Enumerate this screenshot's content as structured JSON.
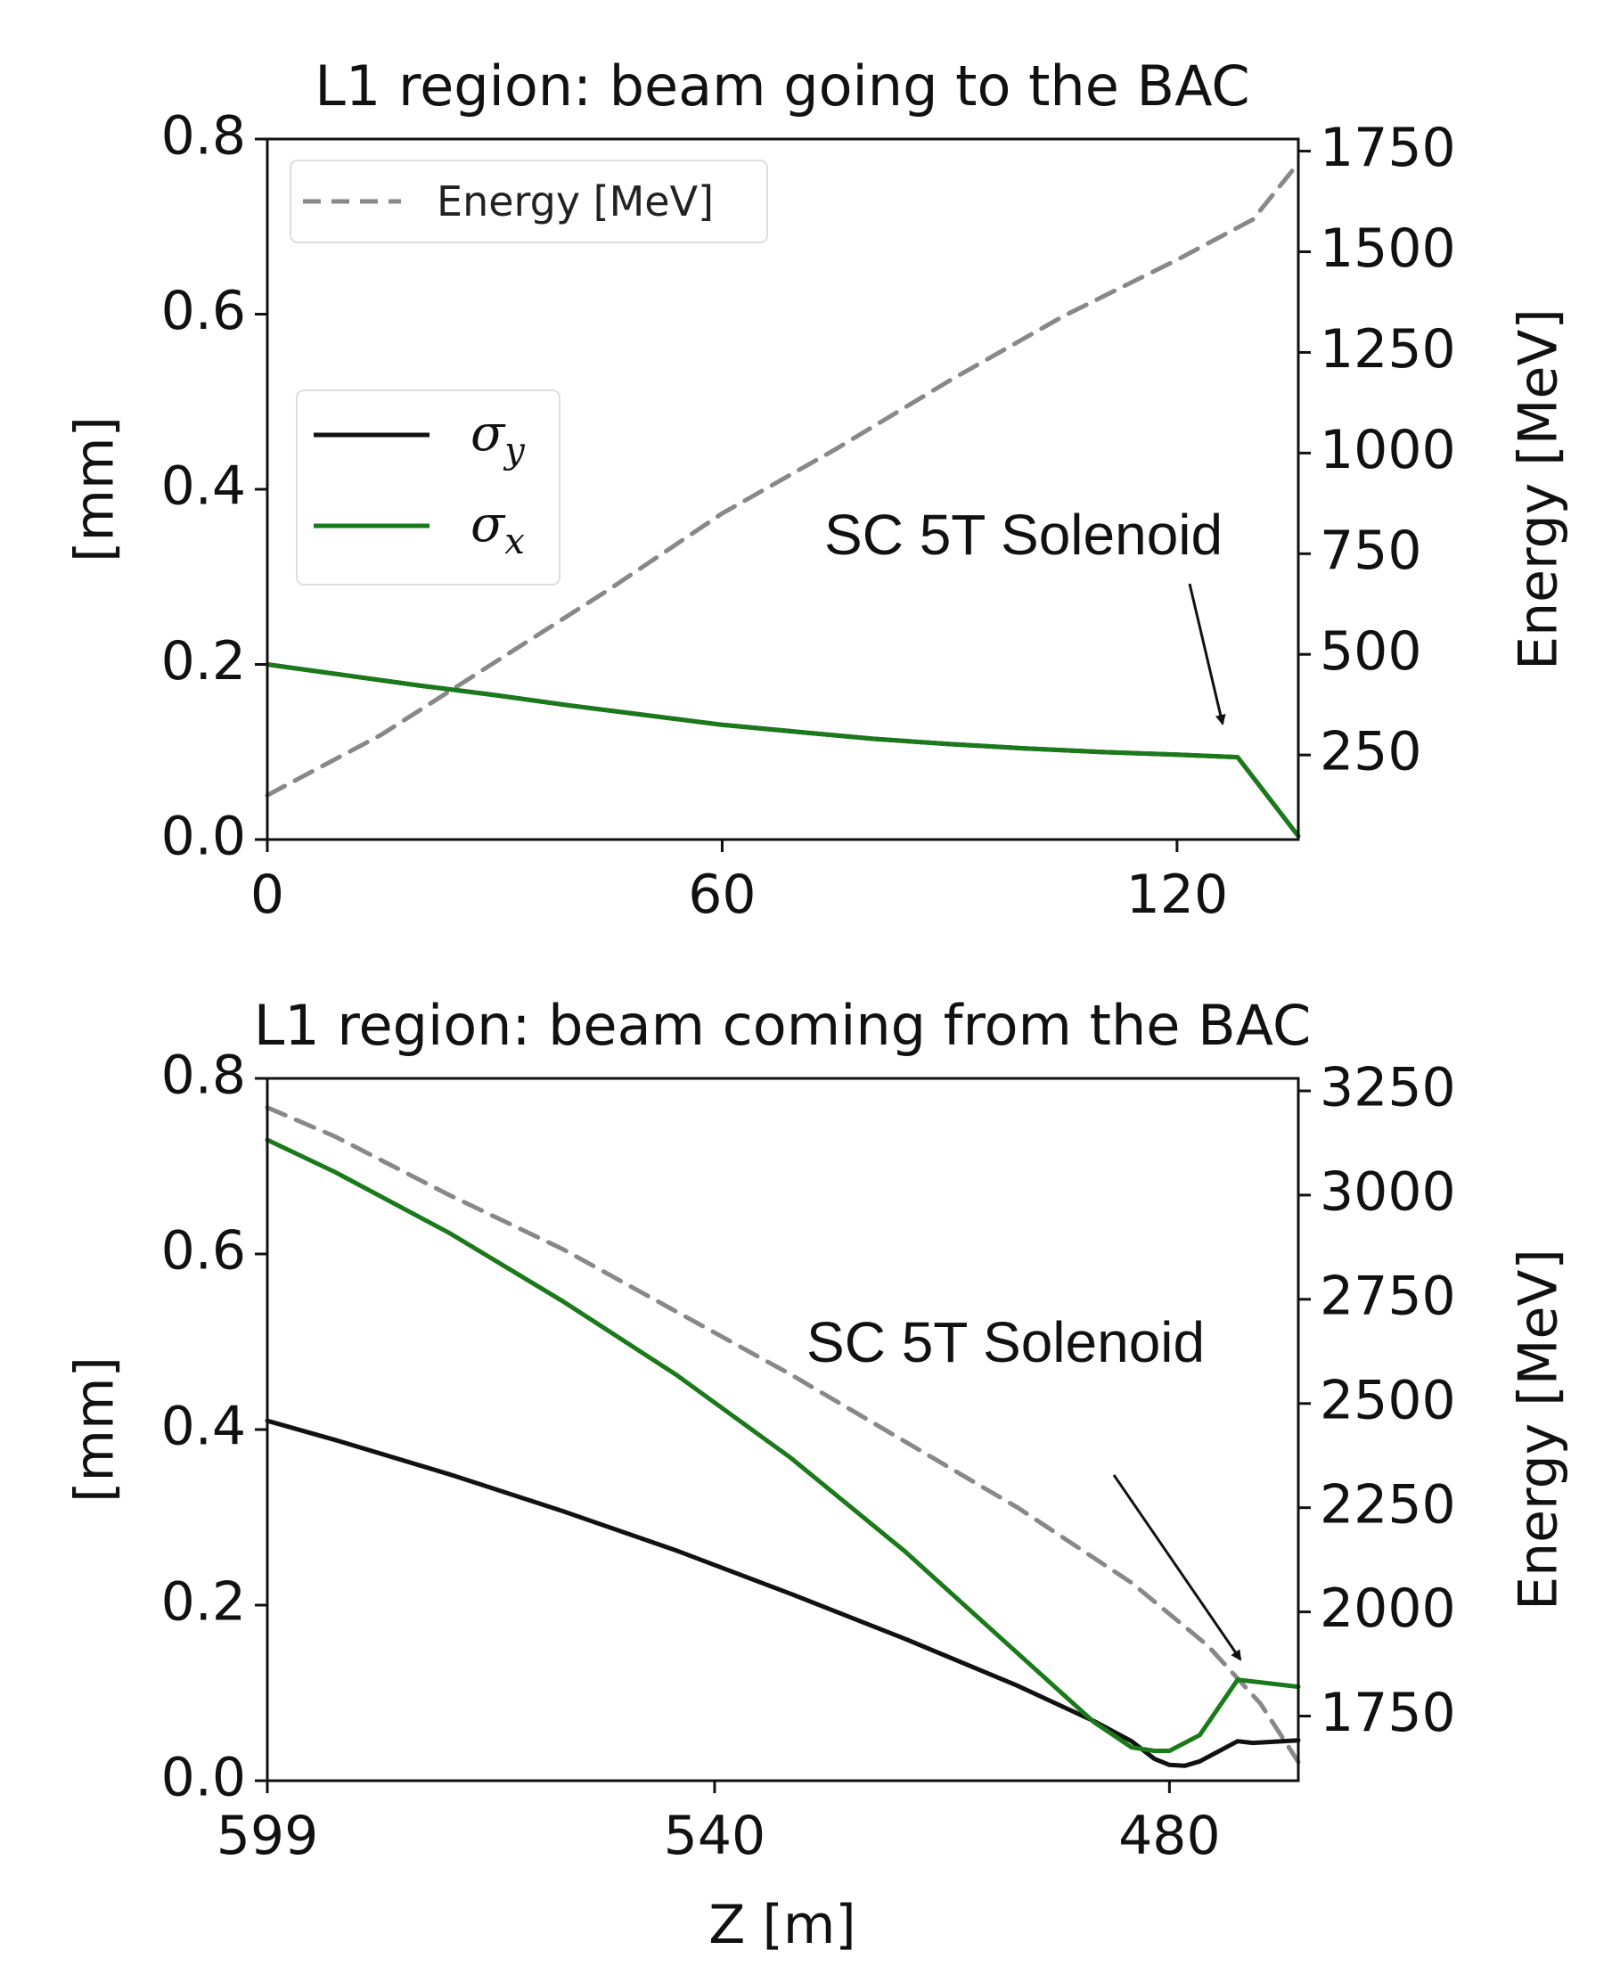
{
  "chart_data": [
    {
      "type": "line",
      "title": "L1 region: beam going to the BAC",
      "xlabel": "",
      "ylabel": "[mm]",
      "y2label": "Energy [MeV]",
      "xlim": [
        0,
        136
      ],
      "ylim": [
        0,
        0.8
      ],
      "y2lim": [
        40,
        1780
      ],
      "xticks": [
        0,
        60,
        120
      ],
      "yticks": [
        "0.0",
        "0.2",
        "0.4",
        "0.6",
        "0.8"
      ],
      "y2ticks": [
        "250",
        "500",
        "750",
        "1000",
        "1250",
        "1500",
        "1750"
      ],
      "legend_energy": "Energy [MeV]",
      "legend_sigma_y": "σy",
      "legend_sigma_x": "σx",
      "annotation": "SC 5T Solenoid",
      "series": [
        {
          "name": "Energy [MeV]",
          "axis": "right",
          "color": "#888888",
          "dash": true,
          "x": [
            0,
            15,
            30,
            45,
            60,
            75,
            90,
            105,
            120,
            130,
            136
          ],
          "y": [
            150,
            300,
            480,
            660,
            850,
            1010,
            1180,
            1340,
            1480,
            1580,
            1720
          ]
        },
        {
          "name": "σy",
          "axis": "left",
          "color": "#111111",
          "x": [
            0,
            10,
            20,
            30,
            40,
            50,
            60,
            70,
            80,
            90,
            100,
            110,
            120,
            128,
            136
          ],
          "y": [
            0.2,
            0.188,
            0.176,
            0.165,
            0.153,
            0.142,
            0.131,
            0.123,
            0.115,
            0.109,
            0.104,
            0.1,
            0.097,
            0.094,
            0.004
          ]
        },
        {
          "name": "σx",
          "axis": "left",
          "color": "#1a7a1a",
          "x": [
            0,
            10,
            20,
            30,
            40,
            50,
            60,
            70,
            80,
            90,
            100,
            110,
            120,
            128,
            136
          ],
          "y": [
            0.2,
            0.188,
            0.176,
            0.165,
            0.153,
            0.142,
            0.131,
            0.123,
            0.115,
            0.109,
            0.104,
            0.1,
            0.097,
            0.094,
            0.004
          ]
        }
      ]
    },
    {
      "type": "line",
      "title": "L1 region: beam coming from the BAC",
      "xlabel": "Z [m]",
      "ylabel": "[mm]",
      "y2label": "Energy [MeV]",
      "xlim": [
        599,
        463
      ],
      "ylim": [
        0,
        0.8
      ],
      "y2lim": [
        1595,
        3280
      ],
      "xticks": [
        599,
        540,
        480
      ],
      "yticks": [
        "0.0",
        "0.2",
        "0.4",
        "0.6",
        "0.8"
      ],
      "y2ticks": [
        "1750",
        "2000",
        "2250",
        "2500",
        "2750",
        "3000",
        "3250"
      ],
      "annotation": "SC 5T Solenoid",
      "series": [
        {
          "name": "Energy [MeV]",
          "axis": "right",
          "color": "#888888",
          "dash": true,
          "x": [
            599,
            590,
            575,
            560,
            545,
            530,
            515,
            500,
            485,
            475,
            468,
            463
          ],
          "y": [
            3210,
            3140,
            3000,
            2870,
            2720,
            2570,
            2410,
            2250,
            2070,
            1920,
            1780,
            1640
          ]
        },
        {
          "name": "σy",
          "axis": "left",
          "color": "#111111",
          "x": [
            599,
            590,
            575,
            560,
            545,
            530,
            515,
            500,
            490,
            485,
            482,
            480,
            478,
            476,
            471,
            469,
            463
          ],
          "y": [
            0.41,
            0.388,
            0.349,
            0.307,
            0.262,
            0.213,
            0.162,
            0.108,
            0.068,
            0.045,
            0.025,
            0.018,
            0.017,
            0.022,
            0.045,
            0.043,
            0.046
          ]
        },
        {
          "name": "σx",
          "axis": "left",
          "color": "#1a7a1a",
          "x": [
            599,
            590,
            575,
            560,
            545,
            530,
            515,
            500,
            490,
            485,
            482,
            480,
            476,
            471,
            463
          ],
          "y": [
            0.73,
            0.693,
            0.624,
            0.546,
            0.462,
            0.368,
            0.262,
            0.145,
            0.067,
            0.038,
            0.034,
            0.034,
            0.052,
            0.115,
            0.107
          ]
        }
      ]
    }
  ]
}
